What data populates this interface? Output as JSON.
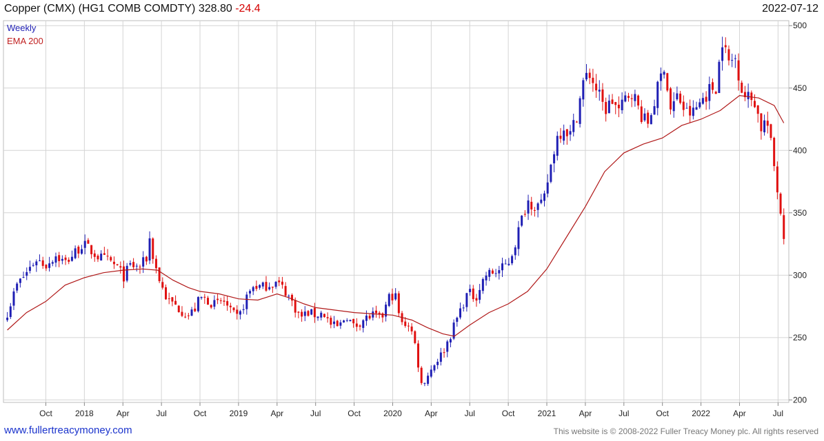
{
  "header": {
    "name": "Copper (CMX) (HG1 COMB COMDTY)",
    "last": "328.80",
    "change": "-24.4",
    "date": "2022-07-12"
  },
  "footer": {
    "site": "www.fullertreacymoney.com",
    "copyright": "This website is © 2008-2022 Fuller Treacy Money plc. All rights reserved"
  },
  "colors": {
    "up": "#1f1fb4",
    "down": "#e01010",
    "ema": "#b01818",
    "grid": "#d4d4d4"
  },
  "chart_data": {
    "type": "candlestick",
    "interval": "Weekly",
    "grid": true,
    "legend_position": "top-left",
    "ylim": [
      198,
      504
    ],
    "yaxis_side": "right",
    "y_ticks": [
      200,
      250,
      300,
      350,
      400,
      450,
      500
    ],
    "x_ticks": [
      {
        "label": "Oct",
        "x": 4.0
      },
      {
        "label": "2018",
        "x": 5.0
      },
      {
        "label": "Apr",
        "x": 6.0
      },
      {
        "label": "Jul",
        "x": 7.0
      },
      {
        "label": "Oct",
        "x": 8.0
      },
      {
        "label": "2019",
        "x": 9.0
      },
      {
        "label": "Apr",
        "x": 10.0
      },
      {
        "label": "Jul",
        "x": 11.0
      },
      {
        "label": "Oct",
        "x": 12.0
      },
      {
        "label": "2020",
        "x": 13.0
      },
      {
        "label": "Apr",
        "x": 14.0
      },
      {
        "label": "Jul",
        "x": 15.0
      },
      {
        "label": "Oct",
        "x": 16.0
      },
      {
        "label": "2021",
        "x": 17.0
      },
      {
        "label": "Apr",
        "x": 18.0
      },
      {
        "label": "Jul",
        "x": 19.0
      },
      {
        "label": "Oct",
        "x": 20.0
      },
      {
        "label": "2022",
        "x": 21.0
      },
      {
        "label": "Apr",
        "x": 22.0
      },
      {
        "label": "Jul",
        "x": 23.0
      }
    ],
    "series": [
      {
        "name": "Weekly",
        "type": "candlestick",
        "color": "#1f1fb4"
      },
      {
        "name": "EMA 200",
        "type": "line",
        "color": "#b01818"
      }
    ],
    "price_path": [
      [
        3.0,
        270
      ],
      [
        3.25,
        292
      ],
      [
        3.45,
        300
      ],
      [
        3.75,
        313
      ],
      [
        4.0,
        308
      ],
      [
        4.25,
        316
      ],
      [
        4.5,
        310
      ],
      [
        4.75,
        318
      ],
      [
        4.95,
        325
      ],
      [
        5.15,
        320
      ],
      [
        5.4,
        314
      ],
      [
        5.7,
        310
      ],
      [
        5.9,
        305
      ],
      [
        6.0,
        298
      ],
      [
        6.2,
        308
      ],
      [
        6.4,
        306
      ],
      [
        6.6,
        312
      ],
      [
        6.7,
        330
      ],
      [
        6.8,
        312
      ],
      [
        6.95,
        296
      ],
      [
        7.05,
        288
      ],
      [
        7.15,
        280
      ],
      [
        7.35,
        276
      ],
      [
        7.5,
        272
      ],
      [
        7.7,
        268
      ],
      [
        7.85,
        272
      ],
      [
        8.0,
        282
      ],
      [
        8.2,
        280
      ],
      [
        8.4,
        276
      ],
      [
        8.6,
        280
      ],
      [
        8.8,
        270
      ],
      [
        9.0,
        265
      ],
      [
        9.2,
        282
      ],
      [
        9.4,
        292
      ],
      [
        9.6,
        290
      ],
      [
        9.8,
        293
      ],
      [
        10.0,
        294
      ],
      [
        10.2,
        288
      ],
      [
        10.4,
        278
      ],
      [
        10.6,
        266
      ],
      [
        10.8,
        270
      ],
      [
        11.0,
        268
      ],
      [
        11.2,
        270
      ],
      [
        11.4,
        260
      ],
      [
        11.6,
        258
      ],
      [
        11.8,
        268
      ],
      [
        12.0,
        258
      ],
      [
        12.2,
        264
      ],
      [
        12.5,
        268
      ],
      [
        12.7,
        264
      ],
      [
        12.9,
        282
      ],
      [
        13.0,
        284
      ],
      [
        13.1,
        282
      ],
      [
        13.2,
        260
      ],
      [
        13.4,
        262
      ],
      [
        13.55,
        250
      ],
      [
        13.75,
        212
      ],
      [
        13.95,
        222
      ],
      [
        14.1,
        230
      ],
      [
        14.3,
        238
      ],
      [
        14.5,
        252
      ],
      [
        14.7,
        268
      ],
      [
        14.95,
        286
      ],
      [
        15.15,
        282
      ],
      [
        15.4,
        300
      ],
      [
        15.6,
        302
      ],
      [
        15.8,
        304
      ],
      [
        16.0,
        310
      ],
      [
        16.15,
        322
      ],
      [
        16.3,
        340
      ],
      [
        16.5,
        360
      ],
      [
        16.7,
        356
      ],
      [
        16.9,
        355
      ],
      [
        17.0,
        372
      ],
      [
        17.25,
        410
      ],
      [
        17.45,
        420
      ],
      [
        17.6,
        412
      ],
      [
        17.75,
        425
      ],
      [
        17.95,
        455
      ],
      [
        18.1,
        462
      ],
      [
        18.3,
        448
      ],
      [
        18.5,
        432
      ],
      [
        18.7,
        440
      ],
      [
        18.9,
        430
      ],
      [
        19.0,
        440
      ],
      [
        19.2,
        448
      ],
      [
        19.4,
        432
      ],
      [
        19.6,
        420
      ],
      [
        19.8,
        440
      ],
      [
        20.05,
        470
      ],
      [
        20.2,
        432
      ],
      [
        20.4,
        444
      ],
      [
        20.6,
        430
      ],
      [
        20.8,
        430
      ],
      [
        21.0,
        440
      ],
      [
        21.2,
        448
      ],
      [
        21.4,
        452
      ],
      [
        21.55,
        490
      ],
      [
        21.7,
        470
      ],
      [
        21.9,
        474
      ],
      [
        22.1,
        444
      ],
      [
        22.4,
        440
      ],
      [
        22.55,
        418
      ],
      [
        22.7,
        425
      ],
      [
        22.85,
        398
      ],
      [
        22.95,
        376
      ],
      [
        23.05,
        355
      ],
      [
        23.15,
        329
      ]
    ],
    "ema200": [
      [
        3.0,
        256
      ],
      [
        3.5,
        270
      ],
      [
        4.0,
        279
      ],
      [
        4.5,
        292
      ],
      [
        5.0,
        298
      ],
      [
        5.5,
        302
      ],
      [
        6.0,
        304
      ],
      [
        6.5,
        305
      ],
      [
        6.9,
        304
      ],
      [
        7.3,
        296
      ],
      [
        7.7,
        290
      ],
      [
        8.0,
        287
      ],
      [
        8.5,
        285
      ],
      [
        9.0,
        281
      ],
      [
        9.5,
        280
      ],
      [
        10.0,
        285
      ],
      [
        10.3,
        282
      ],
      [
        10.7,
        277
      ],
      [
        11.0,
        274
      ],
      [
        11.5,
        272
      ],
      [
        12.0,
        270
      ],
      [
        12.5,
        269
      ],
      [
        13.0,
        268
      ],
      [
        13.5,
        264
      ],
      [
        13.9,
        258
      ],
      [
        14.3,
        253
      ],
      [
        14.6,
        251
      ],
      [
        15.0,
        260
      ],
      [
        15.5,
        270
      ],
      [
        16.0,
        277
      ],
      [
        16.5,
        287
      ],
      [
        17.0,
        305
      ],
      [
        17.5,
        330
      ],
      [
        18.0,
        355
      ],
      [
        18.5,
        383
      ],
      [
        19.0,
        398
      ],
      [
        19.5,
        405
      ],
      [
        20.0,
        410
      ],
      [
        20.5,
        420
      ],
      [
        21.0,
        425
      ],
      [
        21.5,
        432
      ],
      [
        22.0,
        444
      ],
      [
        22.5,
        442
      ],
      [
        22.9,
        436
      ],
      [
        23.15,
        422
      ]
    ]
  }
}
